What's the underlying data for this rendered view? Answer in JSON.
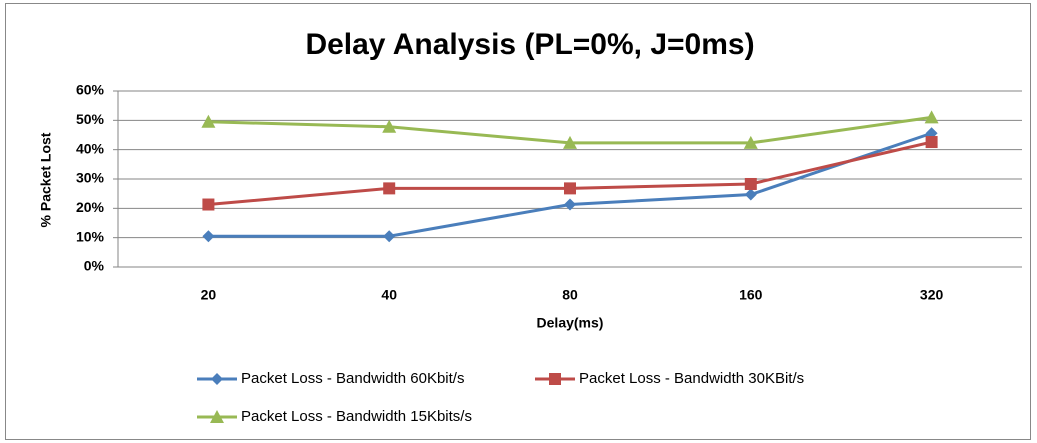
{
  "chart_data": {
    "type": "line",
    "title": "Delay Analysis (PL=0%, J=0ms)",
    "x_label": "Delay(ms)",
    "y_label": "% Packet Lost",
    "categories": [
      "20",
      "40",
      "80",
      "160",
      "320"
    ],
    "series": [
      {
        "name": "Packet Loss - Bandwidth 60Kbit/s",
        "color": "#4a7ebb",
        "marker": "diamond",
        "values": [
          10.5,
          10.5,
          21.3,
          24.7,
          45.6
        ]
      },
      {
        "name": "Packet Loss - Bandwidth 30KBit/s",
        "color": "#be4b48",
        "marker": "square",
        "values": [
          21.3,
          26.8,
          26.8,
          28.3,
          42.6
        ]
      },
      {
        "name": "Packet Loss - Bandwidth 15Kbits/s",
        "color": "#98b954",
        "marker": "triangle",
        "values": [
          49.5,
          47.8,
          42.3,
          42.3,
          51
        ]
      }
    ],
    "ylim": [
      0,
      60
    ],
    "yticks": [
      {
        "value": 0,
        "label": "0%"
      },
      {
        "value": 10,
        "label": "10%"
      },
      {
        "value": 20,
        "label": "20%"
      },
      {
        "value": 30,
        "label": "30%"
      },
      {
        "value": 40,
        "label": "40%"
      },
      {
        "value": 50,
        "label": "50%"
      },
      {
        "value": 60,
        "label": "60%"
      }
    ],
    "grid": true,
    "legend": "bottom"
  }
}
